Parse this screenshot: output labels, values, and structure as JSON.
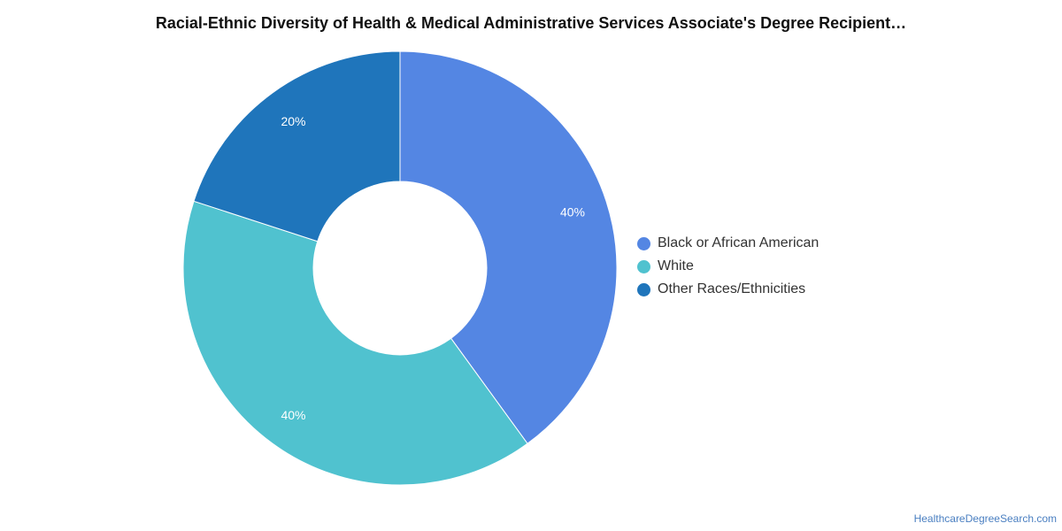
{
  "chart_data": {
    "type": "pie",
    "variant": "donut",
    "title": "Racial-Ethnic Diversity of Health & Medical Administrative Services Associate's Degree Recipient…",
    "slices": [
      {
        "label": "Black or African American",
        "value": 40,
        "display": "40%",
        "color": "#5486e3"
      },
      {
        "label": "White",
        "value": 40,
        "display": "40%",
        "color": "#50c2cf"
      },
      {
        "label": "Other Races/Ethnicities",
        "value": 20,
        "display": "20%",
        "color": "#1f75bb"
      }
    ],
    "legend_position": "right"
  },
  "watermark": "HealthcareDegreeSearch.com"
}
